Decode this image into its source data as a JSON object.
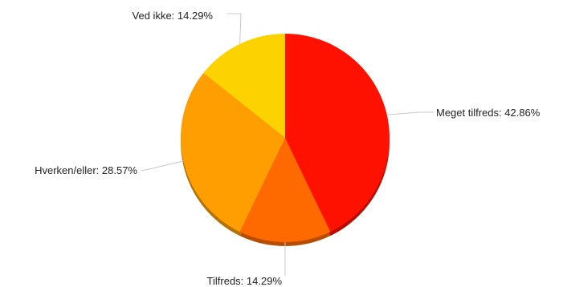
{
  "chart_data": {
    "type": "pie",
    "title": "",
    "slices": [
      {
        "label": "Meget tilfreds",
        "value": 42.86,
        "display": "Meget tilfreds: 42.86%",
        "color": "#ff1100"
      },
      {
        "label": "Tilfreds",
        "value": 14.29,
        "display": "Tilfreds: 14.29%",
        "color": "#ff6a00"
      },
      {
        "label": "Hverken/eller",
        "value": 28.57,
        "display": "Hverken/eller: 28.57%",
        "color": "#ff9e00"
      },
      {
        "label": "Ved ikke",
        "value": 14.29,
        "display": "Ved ikke: 14.29%",
        "color": "#fcd200"
      }
    ],
    "legend": "none"
  }
}
